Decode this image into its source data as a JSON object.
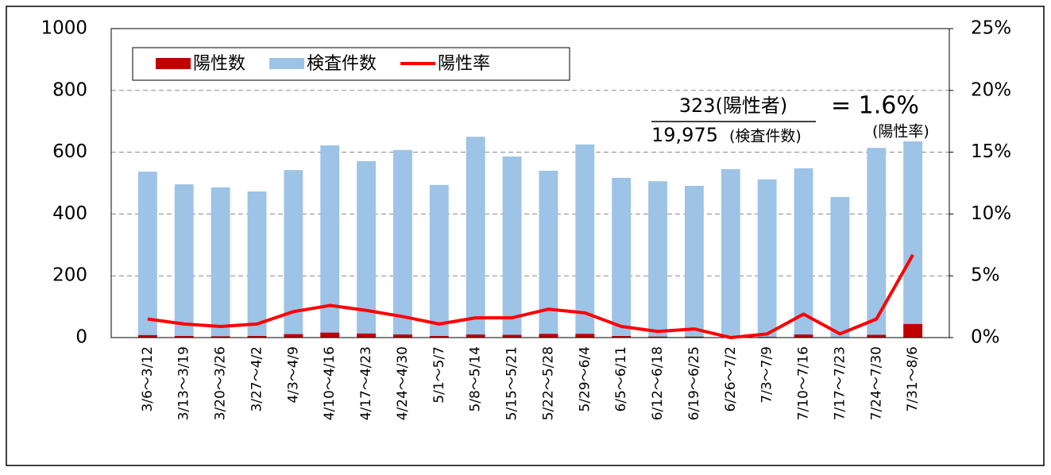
{
  "chart_data": {
    "type": "bar_line",
    "categories": [
      "3/6～3/12",
      "3/13～3/19",
      "3/20～3/26",
      "3/27～4/2",
      "4/3～4/9",
      "4/10～4/16",
      "4/17～4/23",
      "4/24～4/30",
      "5/1～5/7",
      "5/8～5/14",
      "5/15～5/21",
      "5/22～5/28",
      "5/29～6/4",
      "6/5～6/11",
      "6/12～6/18",
      "6/19～6/25",
      "6/26～7/2",
      "7/3～7/9",
      "7/10～7/16",
      "7/17～7/23",
      "7/24～7/30",
      "7/31～8/6"
    ],
    "series": [
      {
        "name": "陽性数",
        "color": "#c00000",
        "values": [
          8,
          5,
          4,
          5,
          11,
          16,
          13,
          10,
          5,
          10,
          9,
          12,
          12,
          5,
          3,
          3,
          0,
          2,
          10,
          1,
          9,
          44
        ]
      },
      {
        "name": "検査件数",
        "color": "#9dc3e6",
        "values": [
          537,
          496,
          486,
          473,
          542,
          622,
          571,
          607,
          494,
          650,
          586,
          540,
          625,
          517,
          506,
          491,
          545,
          512,
          548,
          455,
          614,
          655
        ]
      },
      {
        "name": "陽性率",
        "color": "#ff0000",
        "axis": "y2",
        "values": [
          1.5,
          1.1,
          0.9,
          1.1,
          2.1,
          2.6,
          2.2,
          1.7,
          1.1,
          1.6,
          1.6,
          2.3,
          2.0,
          0.9,
          0.5,
          0.7,
          0,
          0.3,
          1.9,
          0.3,
          1.5,
          6.7
        ]
      }
    ],
    "ylim": [
      0,
      1000
    ],
    "yticks": [
      0,
      200,
      400,
      600,
      800,
      1000
    ],
    "y2lim": [
      0,
      25
    ],
    "y2ticks": [
      {
        "value": 0,
        "label": "0%"
      },
      {
        "value": 5,
        "label": "5%"
      },
      {
        "value": 10,
        "label": "10%"
      },
      {
        "value": 15,
        "label": "15%"
      },
      {
        "value": 20,
        "label": "20%"
      },
      {
        "value": 25,
        "label": "25%"
      }
    ],
    "grid": true,
    "legend": "top-left",
    "annotations": [
      "323(陽性者)",
      "19,975",
      "(検査件数)",
      "= 1.6%",
      "(陽性率)"
    ]
  }
}
